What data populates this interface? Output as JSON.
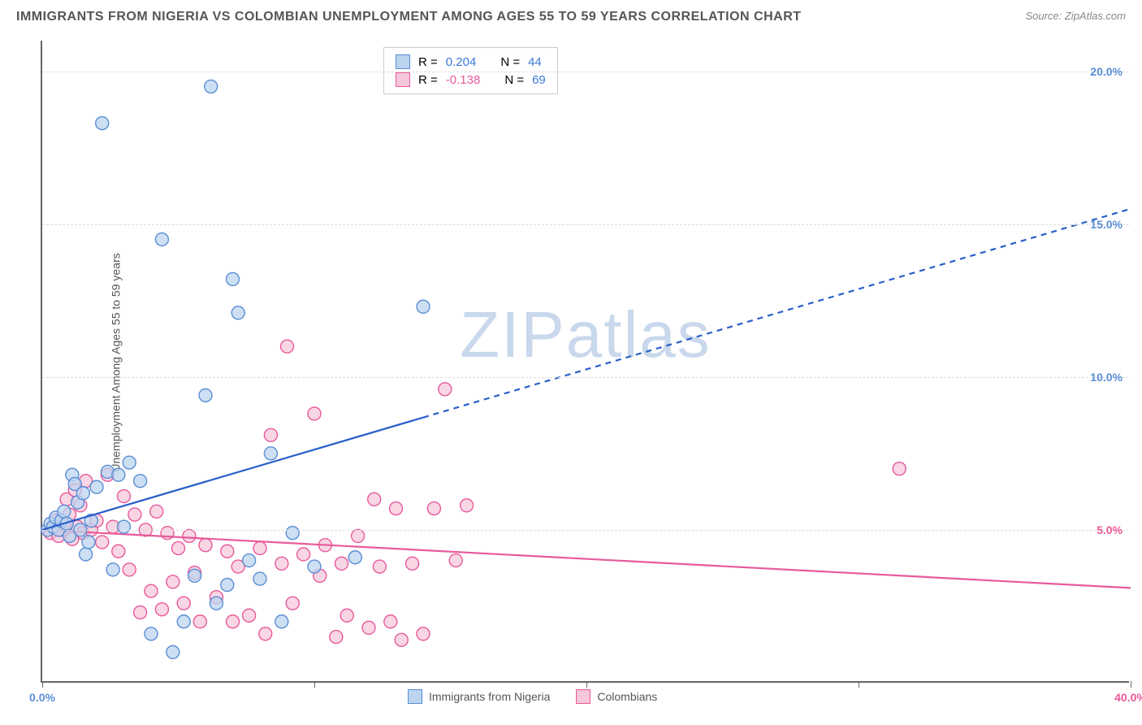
{
  "header": {
    "title": "IMMIGRANTS FROM NIGERIA VS COLOMBIAN UNEMPLOYMENT AMONG AGES 55 TO 59 YEARS CORRELATION CHART",
    "source_prefix": "Source: ",
    "source_name": "ZipAtlas.com"
  },
  "watermark": {
    "text": "ZIPatlas",
    "color": "#c9d8ec"
  },
  "axes": {
    "ylabel": "Unemployment Among Ages 55 to 59 years",
    "xlim": [
      0,
      40
    ],
    "ylim": [
      0,
      21
    ],
    "yticks": [
      {
        "v": 5,
        "label": "5.0%",
        "color": "#e85a9b"
      },
      {
        "v": 10,
        "label": "10.0%",
        "color": "#5a8ed6"
      },
      {
        "v": 15,
        "label": "15.0%",
        "color": "#5a8ed6"
      },
      {
        "v": 20,
        "label": "20.0%",
        "color": "#5a8ed6"
      }
    ],
    "xticks": [
      {
        "v": 0,
        "label": "0.0%",
        "color": "#5a8ed6"
      },
      {
        "v": 10,
        "label": "",
        "color": "#5a8ed6"
      },
      {
        "v": 20,
        "label": "",
        "color": "#5a8ed6"
      },
      {
        "v": 30,
        "label": "",
        "color": "#5a8ed6"
      },
      {
        "v": 40,
        "label": "40.0%",
        "color": "#e85a9b"
      }
    ],
    "grid_color": "#dddddd"
  },
  "legend_top": {
    "rows": [
      {
        "swatch_fill": "#bcd4ef",
        "swatch_border": "#5a8ed6",
        "r_label": "R =",
        "r_val": "0.204",
        "r_color": "#3b78d6",
        "n_label": "N =",
        "n_val": "44",
        "n_color": "#3b78d6"
      },
      {
        "swatch_fill": "#f6c6da",
        "swatch_border": "#e85a9b",
        "r_label": "R =",
        "r_val": "-0.138",
        "r_color": "#e85a9b",
        "n_label": "N =",
        "n_val": "69",
        "n_color": "#3b78d6"
      }
    ]
  },
  "legend_bottom": {
    "items": [
      {
        "swatch_fill": "#bcd4ef",
        "swatch_border": "#5a8ed6",
        "label": "Immigrants from Nigeria"
      },
      {
        "swatch_fill": "#f6c6da",
        "swatch_border": "#e85a9b",
        "label": "Colombians"
      }
    ]
  },
  "series": {
    "blue": {
      "marker_fill": "#bcd4ef",
      "marker_stroke": "#5a8ed6",
      "marker_r": 8,
      "marker_opacity": 0.75,
      "line_color": "#2a5fc9",
      "line_width": 2.2,
      "trend": {
        "x1": 0,
        "y1": 5.0,
        "x2": 40,
        "y2": 15.5,
        "solid_until_x": 14
      },
      "points": [
        [
          0.2,
          5.0
        ],
        [
          0.3,
          5.2
        ],
        [
          0.4,
          5.1
        ],
        [
          0.5,
          5.4
        ],
        [
          0.6,
          5.0
        ],
        [
          0.7,
          5.3
        ],
        [
          0.8,
          5.6
        ],
        [
          0.9,
          5.2
        ],
        [
          1.0,
          4.8
        ],
        [
          1.1,
          6.8
        ],
        [
          1.2,
          6.5
        ],
        [
          1.3,
          5.9
        ],
        [
          1.4,
          5.0
        ],
        [
          1.5,
          6.2
        ],
        [
          1.6,
          4.2
        ],
        [
          1.7,
          4.6
        ],
        [
          1.8,
          5.3
        ],
        [
          2.0,
          6.4
        ],
        [
          2.2,
          18.3
        ],
        [
          2.4,
          6.9
        ],
        [
          2.6,
          3.7
        ],
        [
          2.8,
          6.8
        ],
        [
          3.0,
          5.1
        ],
        [
          3.2,
          7.2
        ],
        [
          3.6,
          6.6
        ],
        [
          4.0,
          1.6
        ],
        [
          4.4,
          14.5
        ],
        [
          4.8,
          1.0
        ],
        [
          5.2,
          2.0
        ],
        [
          5.6,
          3.5
        ],
        [
          6.0,
          9.4
        ],
        [
          6.2,
          19.5
        ],
        [
          6.4,
          2.6
        ],
        [
          6.8,
          3.2
        ],
        [
          7.0,
          13.2
        ],
        [
          7.2,
          12.1
        ],
        [
          7.6,
          4.0
        ],
        [
          8.0,
          3.4
        ],
        [
          8.4,
          7.5
        ],
        [
          8.8,
          2.0
        ],
        [
          9.2,
          4.9
        ],
        [
          10.0,
          3.8
        ],
        [
          11.5,
          4.1
        ],
        [
          14.0,
          12.3
        ]
      ]
    },
    "pink": {
      "marker_fill": "#f6c6da",
      "marker_stroke": "#e85a9b",
      "marker_r": 8,
      "marker_opacity": 0.72,
      "line_color": "#e85a9b",
      "line_width": 2.2,
      "trend": {
        "x1": 0,
        "y1": 5.0,
        "x2": 40,
        "y2": 3.1,
        "solid_until_x": 40
      },
      "points": [
        [
          0.2,
          5.0
        ],
        [
          0.3,
          4.9
        ],
        [
          0.4,
          5.1
        ],
        [
          0.5,
          5.3
        ],
        [
          0.6,
          4.8
        ],
        [
          0.7,
          5.0
        ],
        [
          0.8,
          5.2
        ],
        [
          0.9,
          6.0
        ],
        [
          1.0,
          5.5
        ],
        [
          1.1,
          4.7
        ],
        [
          1.2,
          6.3
        ],
        [
          1.3,
          5.1
        ],
        [
          1.4,
          5.8
        ],
        [
          1.5,
          4.9
        ],
        [
          1.6,
          6.6
        ],
        [
          1.8,
          5.0
        ],
        [
          2.0,
          5.3
        ],
        [
          2.2,
          4.6
        ],
        [
          2.4,
          6.8
        ],
        [
          2.6,
          5.1
        ],
        [
          2.8,
          4.3
        ],
        [
          3.0,
          6.1
        ],
        [
          3.2,
          3.7
        ],
        [
          3.4,
          5.5
        ],
        [
          3.6,
          2.3
        ],
        [
          3.8,
          5.0
        ],
        [
          4.0,
          3.0
        ],
        [
          4.2,
          5.6
        ],
        [
          4.4,
          2.4
        ],
        [
          4.6,
          4.9
        ],
        [
          4.8,
          3.3
        ],
        [
          5.0,
          4.4
        ],
        [
          5.2,
          2.6
        ],
        [
          5.4,
          4.8
        ],
        [
          5.6,
          3.6
        ],
        [
          5.8,
          2.0
        ],
        [
          6.0,
          4.5
        ],
        [
          6.4,
          2.8
        ],
        [
          6.8,
          4.3
        ],
        [
          7.0,
          2.0
        ],
        [
          7.2,
          3.8
        ],
        [
          7.6,
          2.2
        ],
        [
          8.0,
          4.4
        ],
        [
          8.2,
          1.6
        ],
        [
          8.4,
          8.1
        ],
        [
          8.8,
          3.9
        ],
        [
          9.0,
          11.0
        ],
        [
          9.2,
          2.6
        ],
        [
          9.6,
          4.2
        ],
        [
          10.0,
          8.8
        ],
        [
          10.2,
          3.5
        ],
        [
          10.4,
          4.5
        ],
        [
          10.8,
          1.5
        ],
        [
          11.0,
          3.9
        ],
        [
          11.2,
          2.2
        ],
        [
          11.6,
          4.8
        ],
        [
          12.0,
          1.8
        ],
        [
          12.2,
          6.0
        ],
        [
          12.4,
          3.8
        ],
        [
          12.8,
          2.0
        ],
        [
          13.0,
          5.7
        ],
        [
          13.2,
          1.4
        ],
        [
          13.6,
          3.9
        ],
        [
          14.0,
          1.6
        ],
        [
          14.4,
          5.7
        ],
        [
          14.8,
          9.6
        ],
        [
          15.2,
          4.0
        ],
        [
          15.6,
          5.8
        ],
        [
          31.5,
          7.0
        ]
      ]
    }
  }
}
